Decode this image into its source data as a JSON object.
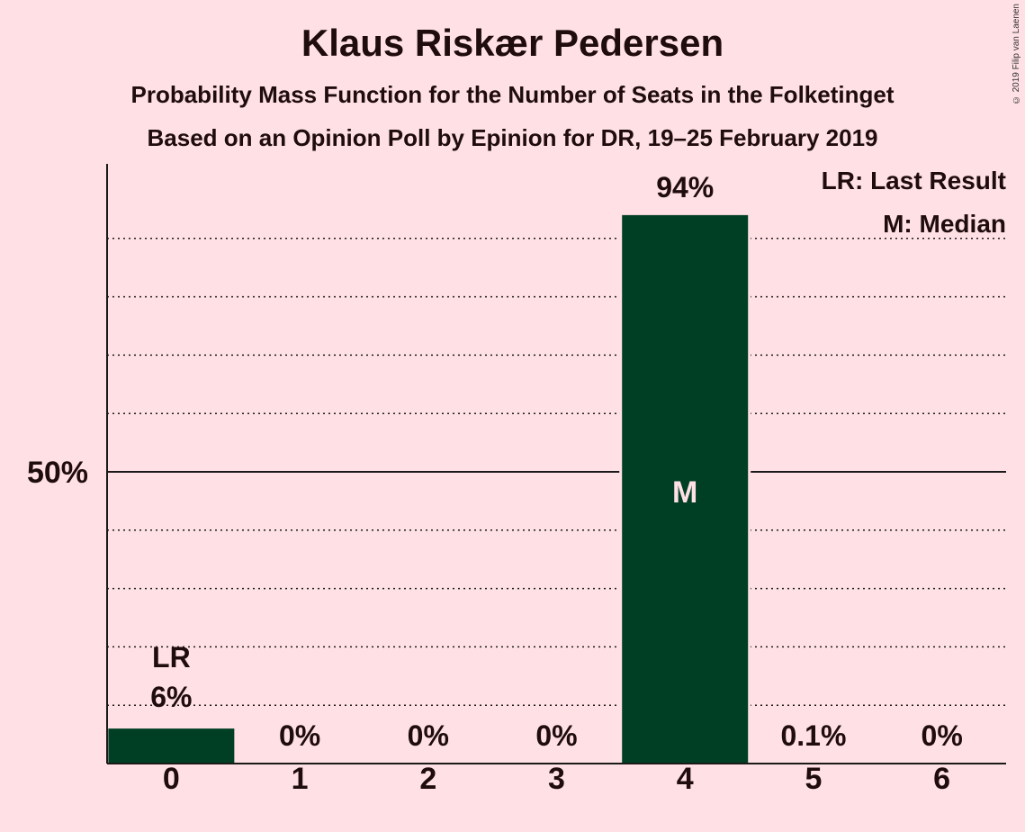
{
  "copyright": "© 2019 Filip van Laenen",
  "colors": {
    "background": "#ffe1e5",
    "bar": "#003f23",
    "text": "#1f0c0c",
    "median_label": "#ffe1e5"
  },
  "chart_data": {
    "type": "bar",
    "title": "Klaus Riskær Pedersen",
    "subtitle": "Probability Mass Function for the Number of Seats in the Folketinget",
    "subtitle2": "Based on an Opinion Poll by Epinion for DR, 19–25 February 2019",
    "categories": [
      "0",
      "1",
      "2",
      "3",
      "4",
      "5",
      "6"
    ],
    "values": [
      6,
      0,
      0,
      0,
      94,
      0.1,
      0
    ],
    "value_labels": [
      "6%",
      "0%",
      "0%",
      "0%",
      "94%",
      "0.1%",
      "0%"
    ],
    "ylim": [
      0,
      100
    ],
    "y_ticks": [
      {
        "value": 50,
        "label": "50%"
      }
    ],
    "gridlines": [
      10,
      20,
      30,
      40,
      60,
      70,
      80,
      90
    ],
    "last_result_index": 0,
    "last_result_label": "LR",
    "median_index": 4,
    "median_label": "M",
    "legend": {
      "placement": "top-right",
      "items": [
        "LR: Last Result",
        "M: Median"
      ]
    }
  }
}
